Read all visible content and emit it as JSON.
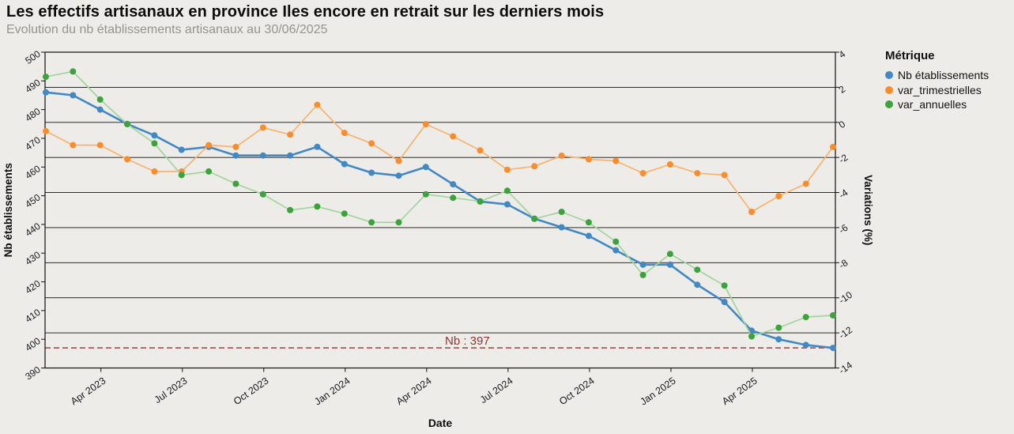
{
  "chart_data": {
    "type": "line",
    "title": "Les effectifs artisanaux en province Iles encore en retrait sur les derniers mois",
    "subtitle": "Evolution du nb établissements artisanaux au 30/06/2025",
    "legend_title": "Métrique",
    "xlabel": "Date",
    "x_frequency": "monthly",
    "x_months": [
      "2023-01",
      "2023-02",
      "2023-03",
      "2023-04",
      "2023-05",
      "2023-06",
      "2023-07",
      "2023-08",
      "2023-09",
      "2023-10",
      "2023-11",
      "2023-12",
      "2024-01",
      "2024-02",
      "2024-03",
      "2024-04",
      "2024-05",
      "2024-06",
      "2024-07",
      "2024-08",
      "2024-09",
      "2024-10",
      "2024-11",
      "2024-12",
      "2025-01",
      "2025-02",
      "2025-03",
      "2025-04",
      "2025-05",
      "2025-06"
    ],
    "x_tick_labels": [
      {
        "label": "Apr 2023",
        "month_index": 2
      },
      {
        "label": "Jul 2023",
        "month_index": 5
      },
      {
        "label": "Oct 2023",
        "month_index": 8
      },
      {
        "label": "Jan 2024",
        "month_index": 11
      },
      {
        "label": "Apr 2024",
        "month_index": 14
      },
      {
        "label": "Jul 2024",
        "month_index": 17
      },
      {
        "label": "Oct 2024",
        "month_index": 20
      },
      {
        "label": "Jan 2025",
        "month_index": 23
      },
      {
        "label": "Apr 2025",
        "month_index": 26
      }
    ],
    "left_axis": {
      "label": "Nb établissements",
      "min": 390,
      "max": 500,
      "ticks": [
        500,
        490,
        480,
        470,
        460,
        450,
        440,
        430,
        420,
        410,
        400,
        390
      ]
    },
    "right_axis": {
      "label": "Variations (%)",
      "min": -14,
      "max": 4,
      "ticks": [
        4,
        2,
        0,
        -2,
        -4,
        -6,
        -8,
        -10,
        -12,
        -14
      ]
    },
    "series": [
      {
        "name": "Nb établissements",
        "axis": "left",
        "line_color": "#4288c5",
        "marker_color": "#4288c5",
        "values": [
          486,
          485,
          480,
          475,
          471,
          466,
          467,
          464,
          464,
          464,
          467,
          461,
          458,
          457,
          460,
          454,
          448,
          447,
          442,
          439,
          436,
          431,
          426,
          426,
          419,
          413,
          403,
          400,
          398,
          397
        ]
      },
      {
        "name": "var_trimestrielles",
        "axis": "right",
        "line_color": "#f9b26f",
        "marker_color": "#fd8c2c",
        "values": [
          -0.5,
          -1.3,
          -1.3,
          -2.1,
          -2.8,
          -2.8,
          -1.3,
          -1.4,
          -0.3,
          -0.7,
          1.0,
          -0.6,
          -1.2,
          -2.2,
          -0.1,
          -0.8,
          -1.6,
          -2.7,
          -2.5,
          -1.9,
          -2.1,
          -2.2,
          -2.9,
          -2.4,
          -2.9,
          -3.0,
          -5.1,
          -4.2,
          -3.5,
          -1.4
        ]
      },
      {
        "name": "var_annuelles",
        "axis": "right",
        "line_color": "#a4d49d",
        "marker_color": "#3ca23c",
        "values": [
          2.6,
          2.9,
          1.3,
          -0.1,
          -1.2,
          -3.0,
          -2.8,
          -3.5,
          -4.1,
          -5.0,
          -4.8,
          -5.2,
          -5.7,
          -5.7,
          -4.1,
          -4.3,
          -4.5,
          -3.9,
          -5.5,
          -5.1,
          -5.7,
          -6.8,
          -8.7,
          -7.5,
          -8.4,
          -9.3,
          -12.2,
          -11.7,
          -11.1,
          -11.0
        ]
      }
    ],
    "annotation": {
      "text": "Nb : 397",
      "value": 397,
      "color": "#8e3434"
    },
    "colors": {
      "background": "#edece8",
      "gridline": "#111111",
      "tick_text": "#1a1a1a"
    }
  }
}
